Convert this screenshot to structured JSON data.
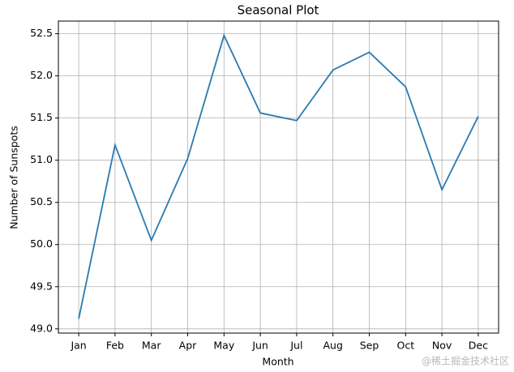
{
  "chart_data": {
    "type": "line",
    "title": "Seasonal Plot",
    "x_label": "Month",
    "y_label": "Number of Sunspots",
    "categories": [
      "Jan",
      "Feb",
      "Mar",
      "Apr",
      "May",
      "Jun",
      "Jul",
      "Aug",
      "Sep",
      "Oct",
      "Nov",
      "Dec"
    ],
    "series": [
      {
        "name": "Sunspots",
        "color": "#2a7ab0",
        "values": [
          49.12,
          51.18,
          50.05,
          51.02,
          52.48,
          51.56,
          51.47,
          52.07,
          52.28,
          51.87,
          50.65,
          51.52
        ]
      }
    ],
    "ylim": [
      48.95,
      52.65
    ],
    "yticks": [
      {
        "value": 49,
        "label": "49.0"
      },
      49.5,
      {
        "value": 50,
        "label": "50.0"
      },
      50.5,
      {
        "value": 51,
        "label": "51.0"
      },
      51.5,
      {
        "value": 52,
        "label": "52.0"
      },
      52.5
    ],
    "grid": true,
    "watermark": "@稀土掘金技术社区"
  }
}
